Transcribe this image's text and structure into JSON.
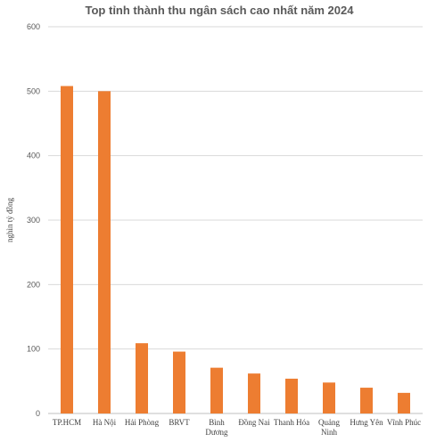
{
  "chart_data": {
    "type": "bar",
    "title": "Top tỉnh thành thu ngân sách cao nhất năm 2024",
    "ylabel": "nghìn tỷ đồng",
    "xlabel": "",
    "categories": [
      [
        "TP.HCM"
      ],
      [
        "Hà Nội"
      ],
      [
        "Hải Phòng"
      ],
      [
        "BRVT"
      ],
      [
        "Bình",
        "Dương"
      ],
      [
        "Đồng Nai"
      ],
      [
        "Thanh Hóa"
      ],
      [
        "Quảng",
        "Ninh"
      ],
      [
        "Hưng Yên"
      ],
      [
        "Vĩnh Phúc"
      ]
    ],
    "values": [
      508,
      500,
      109,
      96,
      71,
      62,
      54,
      48,
      40,
      32
    ],
    "ylim": [
      0,
      600
    ],
    "yticks": [
      0,
      100,
      200,
      300,
      400,
      500,
      600
    ],
    "grid": true,
    "legend": "none",
    "bar_color": "#ed7d31"
  }
}
